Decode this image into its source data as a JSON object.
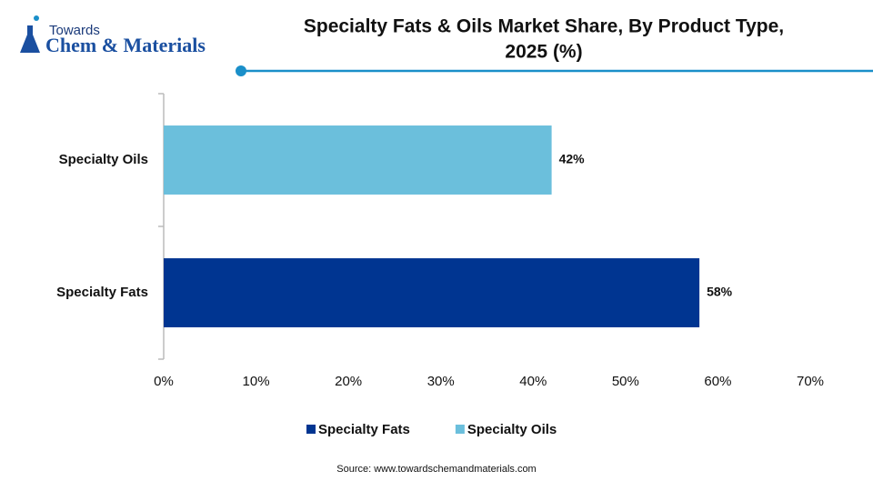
{
  "logo": {
    "line1": "Towards",
    "line2": "Chem & Materials"
  },
  "chart_data": {
    "type": "bar",
    "orientation": "horizontal",
    "title_lines": [
      "Specialty Fats & Oils Market Share, By Product Type,",
      "2025 (%)"
    ],
    "categories": [
      "Specialty Fats",
      "Specialty Oils"
    ],
    "values": [
      58,
      42
    ],
    "value_labels": [
      "58%",
      "42%"
    ],
    "colors": [
      "#003591",
      "#6bbfdc"
    ],
    "xlim": [
      0,
      70
    ],
    "xticks": [
      {
        "value": 0,
        "label": "0%"
      },
      {
        "value": 10,
        "label": "10%"
      },
      {
        "value": 20,
        "label": "20%"
      },
      {
        "value": 30,
        "label": "30%"
      },
      {
        "value": 40,
        "label": "40%"
      },
      {
        "value": 50,
        "label": "50%"
      },
      {
        "value": 60,
        "label": "60%"
      },
      {
        "value": 70,
        "label": "70%"
      }
    ],
    "grid": false,
    "legend": "bottom",
    "source": "Source: www.towardschemandmaterials.com"
  }
}
